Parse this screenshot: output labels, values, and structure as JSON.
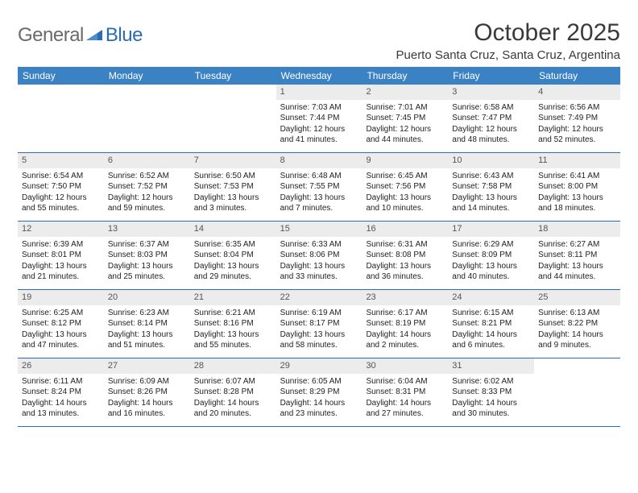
{
  "logo": {
    "text_gray": "General",
    "text_blue": "Blue"
  },
  "title": "October 2025",
  "location": "Puerto Santa Cruz, Santa Cruz, Argentina",
  "colors": {
    "header_bg": "#3b82c4",
    "header_text": "#ffffff",
    "daynum_bg": "#ececec",
    "border": "#2a6db3",
    "logo_gray": "#6a6a6a",
    "logo_blue": "#2a6db3"
  },
  "weekdays": [
    "Sunday",
    "Monday",
    "Tuesday",
    "Wednesday",
    "Thursday",
    "Friday",
    "Saturday"
  ],
  "weeks": [
    [
      null,
      null,
      null,
      {
        "n": "1",
        "sr": "7:03 AM",
        "ss": "7:44 PM",
        "dl": "12 hours and 41 minutes."
      },
      {
        "n": "2",
        "sr": "7:01 AM",
        "ss": "7:45 PM",
        "dl": "12 hours and 44 minutes."
      },
      {
        "n": "3",
        "sr": "6:58 AM",
        "ss": "7:47 PM",
        "dl": "12 hours and 48 minutes."
      },
      {
        "n": "4",
        "sr": "6:56 AM",
        "ss": "7:49 PM",
        "dl": "12 hours and 52 minutes."
      }
    ],
    [
      {
        "n": "5",
        "sr": "6:54 AM",
        "ss": "7:50 PM",
        "dl": "12 hours and 55 minutes."
      },
      {
        "n": "6",
        "sr": "6:52 AM",
        "ss": "7:52 PM",
        "dl": "12 hours and 59 minutes."
      },
      {
        "n": "7",
        "sr": "6:50 AM",
        "ss": "7:53 PM",
        "dl": "13 hours and 3 minutes."
      },
      {
        "n": "8",
        "sr": "6:48 AM",
        "ss": "7:55 PM",
        "dl": "13 hours and 7 minutes."
      },
      {
        "n": "9",
        "sr": "6:45 AM",
        "ss": "7:56 PM",
        "dl": "13 hours and 10 minutes."
      },
      {
        "n": "10",
        "sr": "6:43 AM",
        "ss": "7:58 PM",
        "dl": "13 hours and 14 minutes."
      },
      {
        "n": "11",
        "sr": "6:41 AM",
        "ss": "8:00 PM",
        "dl": "13 hours and 18 minutes."
      }
    ],
    [
      {
        "n": "12",
        "sr": "6:39 AM",
        "ss": "8:01 PM",
        "dl": "13 hours and 21 minutes."
      },
      {
        "n": "13",
        "sr": "6:37 AM",
        "ss": "8:03 PM",
        "dl": "13 hours and 25 minutes."
      },
      {
        "n": "14",
        "sr": "6:35 AM",
        "ss": "8:04 PM",
        "dl": "13 hours and 29 minutes."
      },
      {
        "n": "15",
        "sr": "6:33 AM",
        "ss": "8:06 PM",
        "dl": "13 hours and 33 minutes."
      },
      {
        "n": "16",
        "sr": "6:31 AM",
        "ss": "8:08 PM",
        "dl": "13 hours and 36 minutes."
      },
      {
        "n": "17",
        "sr": "6:29 AM",
        "ss": "8:09 PM",
        "dl": "13 hours and 40 minutes."
      },
      {
        "n": "18",
        "sr": "6:27 AM",
        "ss": "8:11 PM",
        "dl": "13 hours and 44 minutes."
      }
    ],
    [
      {
        "n": "19",
        "sr": "6:25 AM",
        "ss": "8:12 PM",
        "dl": "13 hours and 47 minutes."
      },
      {
        "n": "20",
        "sr": "6:23 AM",
        "ss": "8:14 PM",
        "dl": "13 hours and 51 minutes."
      },
      {
        "n": "21",
        "sr": "6:21 AM",
        "ss": "8:16 PM",
        "dl": "13 hours and 55 minutes."
      },
      {
        "n": "22",
        "sr": "6:19 AM",
        "ss": "8:17 PM",
        "dl": "13 hours and 58 minutes."
      },
      {
        "n": "23",
        "sr": "6:17 AM",
        "ss": "8:19 PM",
        "dl": "14 hours and 2 minutes."
      },
      {
        "n": "24",
        "sr": "6:15 AM",
        "ss": "8:21 PM",
        "dl": "14 hours and 6 minutes."
      },
      {
        "n": "25",
        "sr": "6:13 AM",
        "ss": "8:22 PM",
        "dl": "14 hours and 9 minutes."
      }
    ],
    [
      {
        "n": "26",
        "sr": "6:11 AM",
        "ss": "8:24 PM",
        "dl": "14 hours and 13 minutes."
      },
      {
        "n": "27",
        "sr": "6:09 AM",
        "ss": "8:26 PM",
        "dl": "14 hours and 16 minutes."
      },
      {
        "n": "28",
        "sr": "6:07 AM",
        "ss": "8:28 PM",
        "dl": "14 hours and 20 minutes."
      },
      {
        "n": "29",
        "sr": "6:05 AM",
        "ss": "8:29 PM",
        "dl": "14 hours and 23 minutes."
      },
      {
        "n": "30",
        "sr": "6:04 AM",
        "ss": "8:31 PM",
        "dl": "14 hours and 27 minutes."
      },
      {
        "n": "31",
        "sr": "6:02 AM",
        "ss": "8:33 PM",
        "dl": "14 hours and 30 minutes."
      },
      null
    ]
  ],
  "labels": {
    "sunrise": "Sunrise:",
    "sunset": "Sunset:",
    "daylight": "Daylight:"
  }
}
